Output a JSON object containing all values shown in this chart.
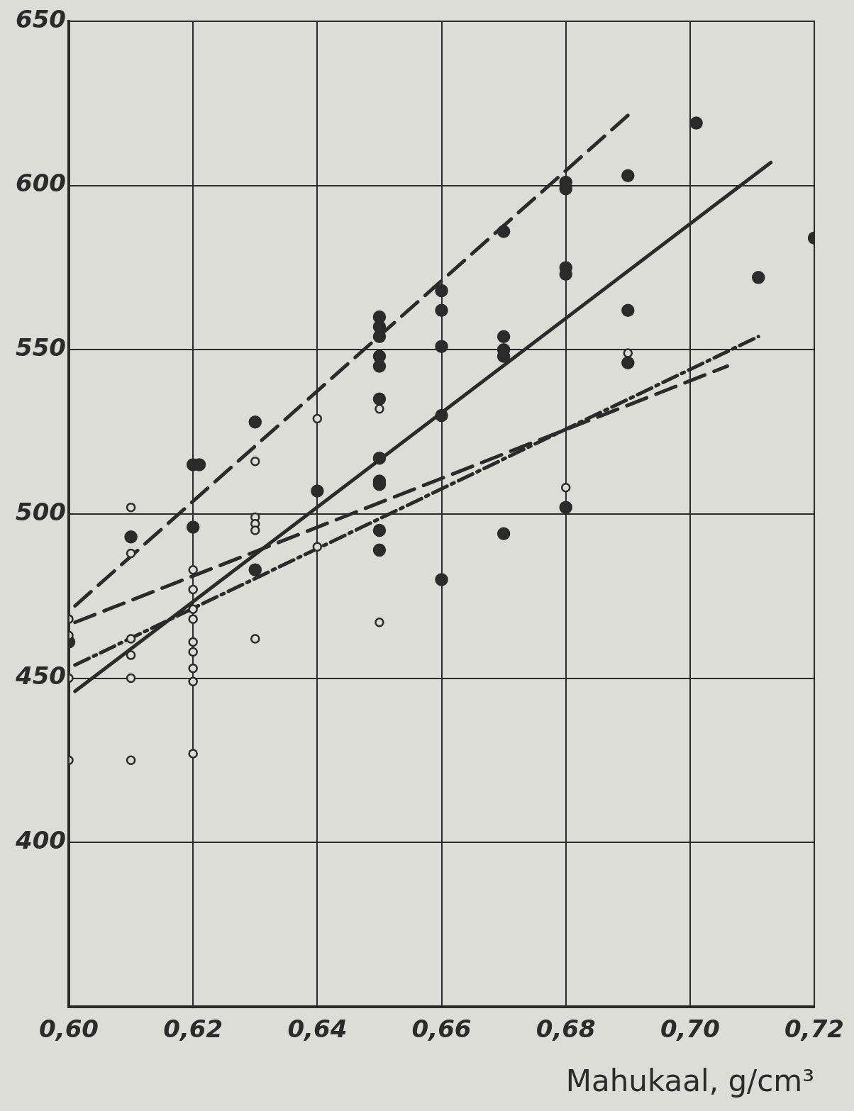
{
  "chart_data": {
    "type": "scatter",
    "xlabel": "Mahukaal, g/cm³",
    "xlim": [
      0.6,
      0.72
    ],
    "ylim": [
      350,
      650
    ],
    "xticks": [
      {
        "value": 0.6,
        "label": "0,60"
      },
      {
        "value": 0.62,
        "label": "0,62"
      },
      {
        "value": 0.64,
        "label": "0,64"
      },
      {
        "value": 0.66,
        "label": "0,66"
      },
      {
        "value": 0.68,
        "label": "0,68"
      },
      {
        "value": 0.7,
        "label": "0,70"
      },
      {
        "value": 0.72,
        "label": "0,72"
      }
    ],
    "yticks": [
      400,
      450,
      500,
      550,
      600,
      650
    ],
    "grid": true,
    "series": [
      {
        "type": "scatter",
        "marker": "circle",
        "color": "#2b2b2b",
        "x": [
          0.6,
          0.61,
          0.62,
          0.621,
          0.62,
          0.63,
          0.63,
          0.64,
          0.65,
          0.65,
          0.65,
          0.65,
          0.65,
          0.65,
          0.65,
          0.65,
          0.65,
          0.65,
          0.65,
          0.66,
          0.66,
          0.66,
          0.66,
          0.66,
          0.67,
          0.67,
          0.67,
          0.67,
          0.67,
          0.68,
          0.68,
          0.68,
          0.68,
          0.68,
          0.69,
          0.69,
          0.69,
          0.701,
          0.711,
          0.72
        ],
        "values": [
          461,
          493,
          515,
          515,
          496,
          528,
          483,
          507,
          560,
          557,
          554,
          548,
          545,
          535,
          517,
          510,
          509,
          495,
          489,
          568,
          562,
          551,
          530,
          480,
          586,
          554,
          550,
          548,
          494,
          601,
          599,
          575,
          573,
          502,
          603,
          562,
          546,
          619,
          572,
          584
        ]
      },
      {
        "type": "scatter",
        "marker": "circle",
        "color": "#2b2b2b",
        "x": [
          0.6,
          0.6,
          0.6,
          0.6,
          0.61,
          0.61,
          0.61,
          0.61,
          0.61,
          0.61,
          0.62,
          0.62,
          0.62,
          0.62,
          0.62,
          0.62,
          0.62,
          0.62,
          0.62,
          0.63,
          0.63,
          0.63,
          0.63,
          0.63,
          0.64,
          0.64,
          0.65,
          0.65,
          0.68,
          0.69
        ],
        "values": [
          468,
          463,
          450,
          425,
          502,
          488,
          462,
          457,
          450,
          425,
          483,
          477,
          471,
          468,
          461,
          458,
          453,
          449,
          427,
          516,
          499,
          497,
          495,
          462,
          529,
          490,
          532,
          467,
          508,
          549
        ]
      },
      {
        "type": "line",
        "color": "#2b2b2b",
        "line_style": "dashed",
        "x": [
          0.601,
          0.691
        ],
        "values": [
          472,
          623
        ]
      },
      {
        "type": "line",
        "color": "#2b2b2b",
        "line_style": "solid",
        "x": [
          0.601,
          0.713
        ],
        "values": [
          446,
          607
        ]
      },
      {
        "type": "line",
        "color": "#2b2b2b",
        "line_style": "dashed",
        "x": [
          0.601,
          0.706
        ],
        "values": [
          467,
          545
        ]
      },
      {
        "type": "line",
        "color": "#2b2b2b",
        "line_style": "dotted",
        "x": [
          0.601,
          0.711
        ],
        "values": [
          454,
          554
        ]
      }
    ]
  }
}
